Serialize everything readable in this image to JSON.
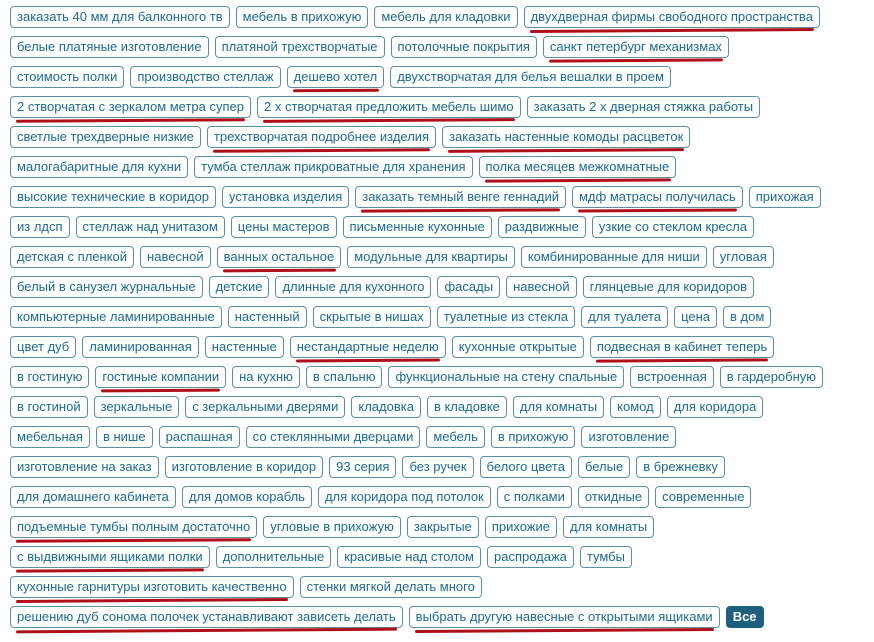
{
  "rows": [
    [
      "заказать 40 мм для балконного тв",
      "мебель в прихожую",
      "мебель для кладовки",
      "двухдверная фирмы свободного пространства"
    ],
    [
      "белые платяные изготовление",
      "платяной трехстворчатые",
      "потолочные покрытия",
      "санкт петербург механизмах"
    ],
    [
      "стоимость полки",
      "производство стеллаж",
      "дешево хотел",
      "двухстворчатая для белья вешалки в проем"
    ],
    [
      "2 створчатая с зеркалом метра супер",
      "2 х створчатая предложить мебель шимо",
      "заказать 2 х дверная стяжка работы"
    ],
    [
      "светлые трехдверные низкие",
      "трехстворчатая подробнее изделия",
      "заказать настенные комоды расцветок"
    ],
    [
      "малогабаритные для кухни",
      "тумба стеллаж прикроватные для хранения",
      "полка месяцев межкомнатные"
    ],
    [
      "высокие технические в коридор",
      "установка изделия",
      "заказать темный венге геннадий",
      "мдф матрасы получилась",
      "прихожая"
    ],
    [
      "из лдсп",
      "стеллаж над унитазом",
      "цены мастеров",
      "письменные кухонные",
      "раздвижные",
      "узкие со стеклом кресла"
    ],
    [
      "детская с пленкой",
      "навесной",
      "ванных остальное",
      "модульные для квартиры",
      "комбинированные для ниши",
      "угловая"
    ],
    [
      "белый в санузел журнальные",
      "детские",
      "длинные для кухонного",
      "фасады",
      "навесной",
      "глянцевые для коридоров"
    ],
    [
      "компьютерные ламинированные",
      "настенный",
      "скрытые в нишах",
      "туалетные из стекла",
      "для туалета",
      "цена",
      "в дом"
    ],
    [
      "цвет дуб",
      "ламинированная",
      "настенные",
      "нестандартные неделю",
      "кухонные открытые",
      "подвесная в кабинет теперь"
    ],
    [
      "в гостиную",
      "гостиные компании",
      "на кухню",
      "в спальню",
      "функциональные на стену спальные",
      "встроенная",
      "в гардеробную"
    ],
    [
      "в гостиной",
      "зеркальные",
      "с зеркальными дверями",
      "кладовка",
      "в кладовке",
      "для комнаты",
      "комод",
      "для коридора"
    ],
    [
      "мебельная",
      "в нише",
      "распашная",
      "со стеклянными дверцами",
      "мебель",
      "в прихожую",
      "изготовление"
    ],
    [
      "изготовление на заказ",
      "изготовление в коридор",
      "93 серия",
      "без ручек",
      "белого цвета",
      "белые",
      "в брежневку"
    ],
    [
      "для домашнего кабинета",
      "для домов корабль",
      "для коридора под потолок",
      "с полками",
      "откидные",
      "современные"
    ],
    [
      "подъемные тумбы полным достаточно",
      "угловые в прихожую",
      "закрытые",
      "прихожие",
      "для комнаты"
    ],
    [
      "с выдвижными ящиками полки",
      "дополнительные",
      "красивые над столом",
      "распродажа",
      "тумбы"
    ],
    [
      "кухонные гарнитуры изготовить качественно",
      "стенки мягкой делать много"
    ],
    [
      "решению дуб сонома полочек устанавливают зависеть делать",
      "выбрать другую навесные с открытыми ящиками"
    ]
  ],
  "marked": [
    "0.3",
    "1.3",
    "2.2",
    "3.0",
    "3.1",
    "4.1",
    "4.2",
    "5.2",
    "6.2",
    "6.3",
    "8.2",
    "11.3",
    "11.5",
    "12.1",
    "17.0",
    "18.0",
    "19.0",
    "20.0",
    "20.1"
  ],
  "all_button_label": "Все",
  "colors": {
    "tag_text": "#1b6b8f",
    "tag_border": "#5b8fa8",
    "marker": "#b0101a",
    "all_button_bg": "#1f5f7e"
  }
}
